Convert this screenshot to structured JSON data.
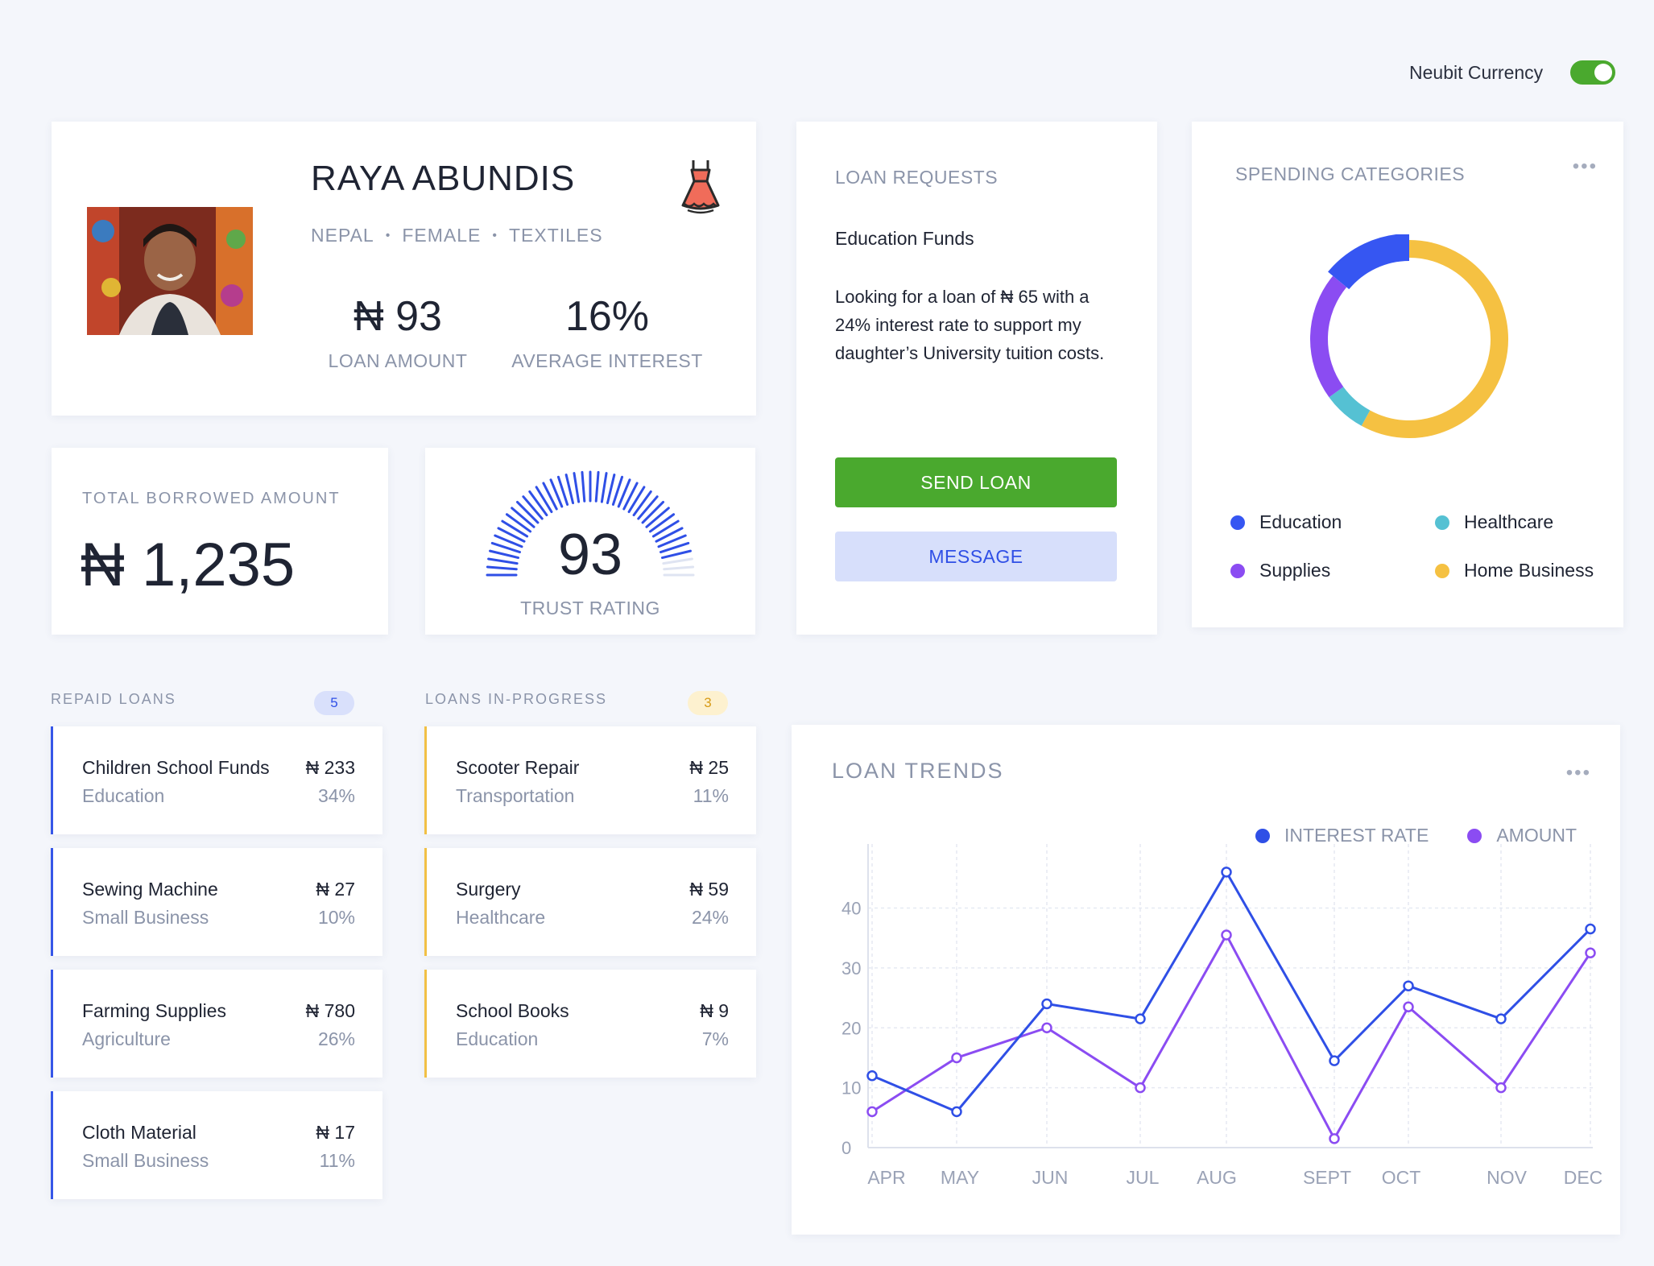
{
  "toggle": {
    "label": "Neubit Currency",
    "on": true,
    "color": "#4aa92e"
  },
  "profile": {
    "name": "RAYA ABUNDIS",
    "country": "NEPAL",
    "gender": "FEMALE",
    "sector": "TEXTILES",
    "sector_icon": "dress-icon",
    "loan_amount": "₦ 93",
    "loan_amount_label": "LOAN AMOUNT",
    "avg_interest": "16%",
    "avg_interest_label": "AVERAGE INTEREST"
  },
  "borrowed": {
    "label": "TOTAL BORROWED AMOUNT",
    "value": "₦ 1,235"
  },
  "trust": {
    "value": "93",
    "label": "TRUST RATING",
    "score_fraction": 0.93
  },
  "requests": {
    "title": "LOAN REQUESTS",
    "subtitle": "Education Funds",
    "body": "Looking for a loan of ₦ 65 with a 24% interest rate to support my daughter’s University tuition costs.",
    "send_label": "SEND LOAN",
    "message_label": "MESSAGE"
  },
  "spending": {
    "title": "SPENDING CATEGORIES",
    "more_icon": "more-horizontal-icon",
    "categories": [
      {
        "name": "Education",
        "color": "#3656f2",
        "share": 0.14
      },
      {
        "name": "Healthcare",
        "color": "#55c1d3",
        "share": 0.07
      },
      {
        "name": "Supplies",
        "color": "#8b4cf2",
        "share": 0.21
      },
      {
        "name": "Home Business",
        "color": "#f5c142",
        "share": 0.58
      }
    ]
  },
  "repaid": {
    "title": "REPAID LOANS",
    "count": "5",
    "items": [
      {
        "name": "Children School Funds",
        "category": "Education",
        "amount": "₦ 233",
        "rate": "34%"
      },
      {
        "name": "Sewing Machine",
        "category": "Small Business",
        "amount": "₦ 27",
        "rate": "10%"
      },
      {
        "name": "Farming Supplies",
        "category": "Agriculture",
        "amount": "₦ 780",
        "rate": "26%"
      },
      {
        "name": "Cloth Material",
        "category": "Small Business",
        "amount": "₦ 17",
        "rate": "11%"
      }
    ]
  },
  "in_progress": {
    "title": "LOANS IN-PROGRESS",
    "count": "3",
    "items": [
      {
        "name": "Scooter Repair",
        "category": "Transportation",
        "amount": "₦ 25",
        "rate": "11%"
      },
      {
        "name": "Surgery",
        "category": "Healthcare",
        "amount": "₦ 59",
        "rate": "24%"
      },
      {
        "name": "School Books",
        "category": "Education",
        "amount": "₦ 9",
        "rate": "7%"
      }
    ]
  },
  "trends": {
    "title": "LOAN TRENDS",
    "more_icon": "more-horizontal-icon"
  },
  "chart_data": {
    "type": "line",
    "title": "LOAN TRENDS",
    "categories": [
      "APR",
      "MAY",
      "JUN",
      "JUL",
      "AUG",
      "SEPT",
      "OCT",
      "NOV",
      "DEC"
    ],
    "series": [
      {
        "name": "INTEREST RATE",
        "color": "#2f4fe6",
        "values": [
          12,
          6,
          24,
          21.5,
          46,
          14.5,
          27,
          21.5,
          36.5
        ]
      },
      {
        "name": "AMOUNT",
        "color": "#8b4cf2",
        "values": [
          6,
          15,
          20,
          10,
          35.5,
          1.5,
          23.5,
          10,
          32.5
        ]
      }
    ],
    "yticks": [
      0,
      10,
      20,
      30,
      40
    ],
    "ylim": [
      0,
      48
    ],
    "grid": true,
    "legend_position": "top-right"
  }
}
